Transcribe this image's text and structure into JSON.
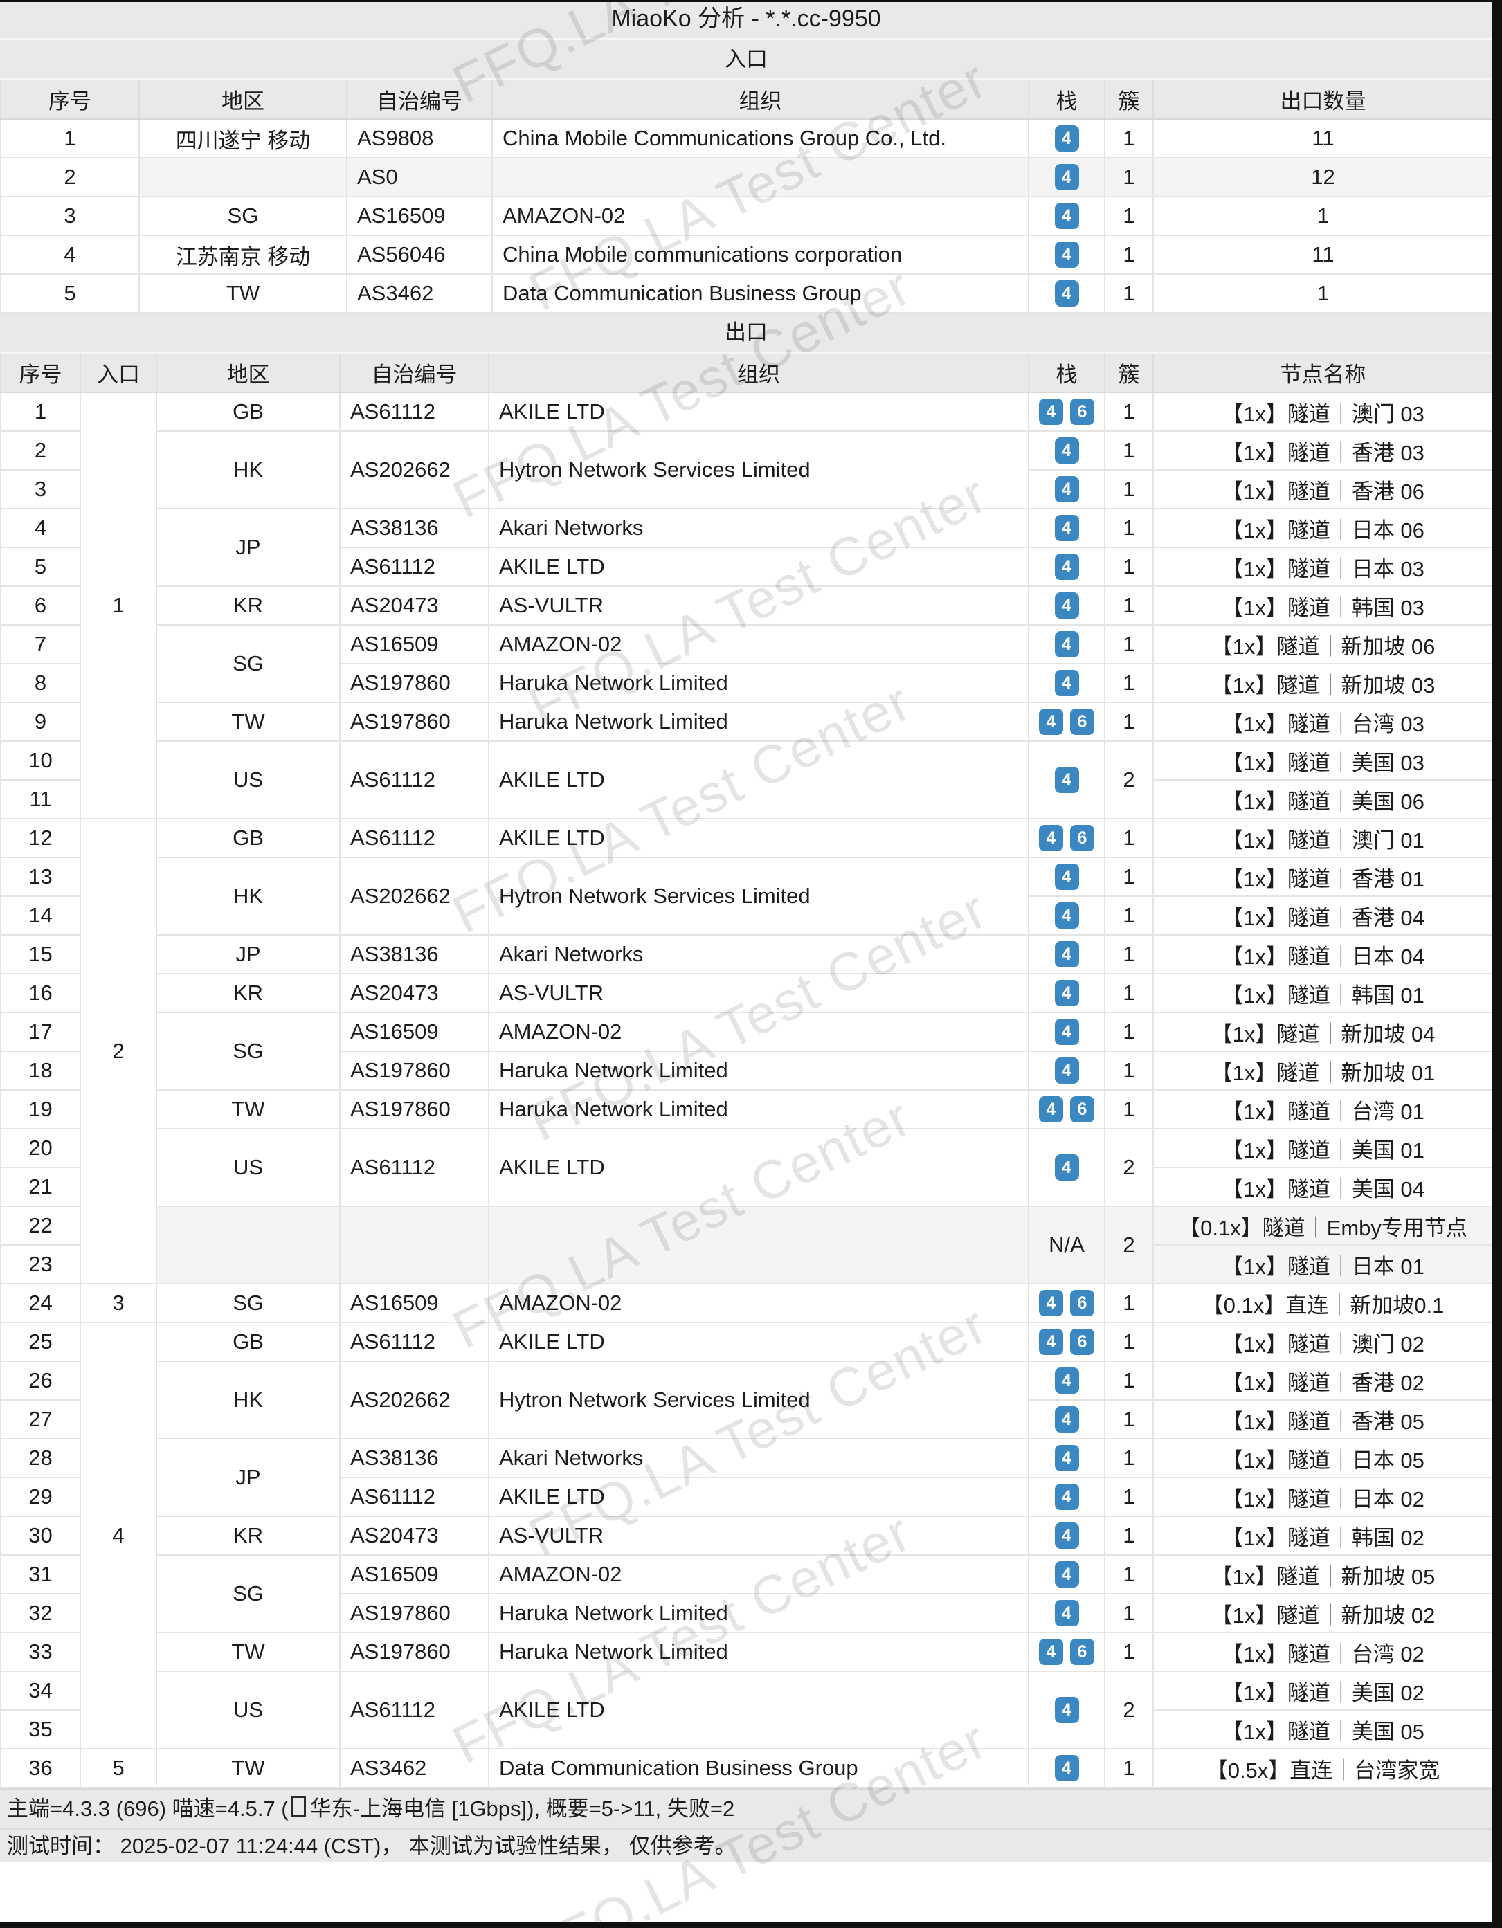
{
  "title": "MiaoKo 分析 - *.*.cc-9950",
  "watermark": {
    "text": "FFQ.LA Test Center"
  },
  "colors": {
    "badge_blue": "#3a87c1",
    "band_gray": "#e9e9e9",
    "row_shade_gray": "#f4f4f4",
    "border_gray": "#e4e4e4",
    "edge_black": "#101010"
  },
  "entry_section": {
    "heading": "入口",
    "columns": [
      "序号",
      "地区",
      "自治编号",
      "组织",
      "栈",
      "簇",
      "出口数量"
    ],
    "rows": [
      {
        "no": "1",
        "region": "四川遂宁 移动",
        "asn": "AS9808",
        "org": "China Mobile Communications Group Co., Ltd.",
        "stack": [
          [
            "4"
          ],
          1
        ],
        "cluster": "1",
        "exits": "11"
      },
      {
        "no": "2",
        "region": "",
        "asn": "AS0",
        "org": "",
        "stack": [
          [
            "4"
          ],
          1
        ],
        "cluster": "1",
        "exits": "12",
        "shaded": true
      },
      {
        "no": "3",
        "region": "SG",
        "asn": "AS16509",
        "org": "AMAZON-02",
        "stack": [
          [
            "4"
          ],
          1
        ],
        "cluster": "1",
        "exits": "1"
      },
      {
        "no": "4",
        "region": "江苏南京 移动",
        "asn": "AS56046",
        "org": "China Mobile communications corporation",
        "stack": [
          [
            "4"
          ],
          1
        ],
        "cluster": "1",
        "exits": "11"
      },
      {
        "no": "5",
        "region": "TW",
        "asn": "AS3462",
        "org": "Data Communication Business Group",
        "stack": [
          [
            "4"
          ],
          1
        ],
        "cluster": "1",
        "exits": "1"
      }
    ]
  },
  "exit_section": {
    "heading": "出口",
    "columns": [
      "序号",
      "入口",
      "地区",
      "自治编号",
      "组织",
      "栈",
      "簇",
      "节点名称"
    ],
    "rows": [
      {
        "no": "1",
        "entry": [
          "1",
          11
        ],
        "region": [
          "GB",
          1
        ],
        "asn": [
          "AS61112",
          1
        ],
        "org": [
          "AKILE LTD",
          1
        ],
        "stack": [
          [
            "4",
            "6"
          ],
          1
        ],
        "cluster": [
          "1",
          1
        ],
        "node": "【1x】隧道｜澳门 03"
      },
      {
        "no": "2",
        "region": [
          "HK",
          2
        ],
        "asn": [
          "AS202662",
          2
        ],
        "org": [
          "Hytron Network Services Limited",
          2
        ],
        "stack": [
          [
            "4"
          ],
          1
        ],
        "cluster": [
          "1",
          1
        ],
        "node": "【1x】隧道｜香港 03"
      },
      {
        "no": "3",
        "stack": [
          [
            "4"
          ],
          1
        ],
        "cluster": [
          "1",
          1
        ],
        "node": "【1x】隧道｜香港 06"
      },
      {
        "no": "4",
        "region": [
          "JP",
          2
        ],
        "asn": [
          "AS38136",
          1
        ],
        "org": [
          "Akari Networks",
          1
        ],
        "stack": [
          [
            "4"
          ],
          1
        ],
        "cluster": [
          "1",
          1
        ],
        "node": "【1x】隧道｜日本 06"
      },
      {
        "no": "5",
        "asn": [
          "AS61112",
          1
        ],
        "org": [
          "AKILE LTD",
          1
        ],
        "stack": [
          [
            "4"
          ],
          1
        ],
        "cluster": [
          "1",
          1
        ],
        "node": "【1x】隧道｜日本 03"
      },
      {
        "no": "6",
        "region": [
          "KR",
          1
        ],
        "asn": [
          "AS20473",
          1
        ],
        "org": [
          "AS-VULTR",
          1
        ],
        "stack": [
          [
            "4"
          ],
          1
        ],
        "cluster": [
          "1",
          1
        ],
        "node": "【1x】隧道｜韩国 03"
      },
      {
        "no": "7",
        "region": [
          "SG",
          2
        ],
        "asn": [
          "AS16509",
          1
        ],
        "org": [
          "AMAZON-02",
          1
        ],
        "stack": [
          [
            "4"
          ],
          1
        ],
        "cluster": [
          "1",
          1
        ],
        "node": "【1x】隧道｜新加坡 06"
      },
      {
        "no": "8",
        "asn": [
          "AS197860",
          1
        ],
        "org": [
          "Haruka Network Limited",
          1
        ],
        "stack": [
          [
            "4"
          ],
          1
        ],
        "cluster": [
          "1",
          1
        ],
        "node": "【1x】隧道｜新加坡 03"
      },
      {
        "no": "9",
        "region": [
          "TW",
          1
        ],
        "asn": [
          "AS197860",
          1
        ],
        "org": [
          "Haruka Network Limited",
          1
        ],
        "stack": [
          [
            "4",
            "6"
          ],
          1
        ],
        "cluster": [
          "1",
          1
        ],
        "node": "【1x】隧道｜台湾 03"
      },
      {
        "no": "10",
        "region": [
          "US",
          2
        ],
        "asn": [
          "AS61112",
          2
        ],
        "org": [
          "AKILE LTD",
          2
        ],
        "stack": [
          [
            "4"
          ],
          2
        ],
        "cluster": [
          "2",
          2
        ],
        "node": "【1x】隧道｜美国 03"
      },
      {
        "no": "11",
        "node": "【1x】隧道｜美国 06"
      },
      {
        "no": "12",
        "entry": [
          "2",
          12
        ],
        "region": [
          "GB",
          1
        ],
        "asn": [
          "AS61112",
          1
        ],
        "org": [
          "AKILE LTD",
          1
        ],
        "stack": [
          [
            "4",
            "6"
          ],
          1
        ],
        "cluster": [
          "1",
          1
        ],
        "node": "【1x】隧道｜澳门 01"
      },
      {
        "no": "13",
        "region": [
          "HK",
          2
        ],
        "asn": [
          "AS202662",
          2
        ],
        "org": [
          "Hytron Network Services Limited",
          2
        ],
        "stack": [
          [
            "4"
          ],
          1
        ],
        "cluster": [
          "1",
          1
        ],
        "node": "【1x】隧道｜香港 01"
      },
      {
        "no": "14",
        "stack": [
          [
            "4"
          ],
          1
        ],
        "cluster": [
          "1",
          1
        ],
        "node": "【1x】隧道｜香港 04"
      },
      {
        "no": "15",
        "region": [
          "JP",
          1
        ],
        "asn": [
          "AS38136",
          1
        ],
        "org": [
          "Akari Networks",
          1
        ],
        "stack": [
          [
            "4"
          ],
          1
        ],
        "cluster": [
          "1",
          1
        ],
        "node": "【1x】隧道｜日本 04"
      },
      {
        "no": "16",
        "region": [
          "KR",
          1
        ],
        "asn": [
          "AS20473",
          1
        ],
        "org": [
          "AS-VULTR",
          1
        ],
        "stack": [
          [
            "4"
          ],
          1
        ],
        "cluster": [
          "1",
          1
        ],
        "node": "【1x】隧道｜韩国 01"
      },
      {
        "no": "17",
        "region": [
          "SG",
          2
        ],
        "asn": [
          "AS16509",
          1
        ],
        "org": [
          "AMAZON-02",
          1
        ],
        "stack": [
          [
            "4"
          ],
          1
        ],
        "cluster": [
          "1",
          1
        ],
        "node": "【1x】隧道｜新加坡 04"
      },
      {
        "no": "18",
        "asn": [
          "AS197860",
          1
        ],
        "org": [
          "Haruka Network Limited",
          1
        ],
        "stack": [
          [
            "4"
          ],
          1
        ],
        "cluster": [
          "1",
          1
        ],
        "node": "【1x】隧道｜新加坡 01"
      },
      {
        "no": "19",
        "region": [
          "TW",
          1
        ],
        "asn": [
          "AS197860",
          1
        ],
        "org": [
          "Haruka Network Limited",
          1
        ],
        "stack": [
          [
            "4",
            "6"
          ],
          1
        ],
        "cluster": [
          "1",
          1
        ],
        "node": "【1x】隧道｜台湾 01"
      },
      {
        "no": "20",
        "region": [
          "US",
          2
        ],
        "asn": [
          "AS61112",
          2
        ],
        "org": [
          "AKILE LTD",
          2
        ],
        "stack": [
          [
            "4"
          ],
          2
        ],
        "cluster": [
          "2",
          2
        ],
        "node": "【1x】隧道｜美国 01"
      },
      {
        "no": "21",
        "node": "【1x】隧道｜美国 04"
      },
      {
        "no": "22",
        "region": [
          "",
          2
        ],
        "asn": [
          "",
          2
        ],
        "org": [
          "",
          2
        ],
        "stack": [
          "N/A",
          2
        ],
        "cluster": [
          "2",
          2
        ],
        "node": "【0.1x】隧道｜Emby专用节点",
        "shaded": true
      },
      {
        "no": "23",
        "node": "【1x】隧道｜日本 01",
        "shaded": true
      },
      {
        "no": "24",
        "entry": [
          "3",
          1
        ],
        "region": [
          "SG",
          1
        ],
        "asn": [
          "AS16509",
          1
        ],
        "org": [
          "AMAZON-02",
          1
        ],
        "stack": [
          [
            "4",
            "6"
          ],
          1
        ],
        "cluster": [
          "1",
          1
        ],
        "node": "【0.1x】直连｜新加坡0.1"
      },
      {
        "no": "25",
        "entry": [
          "4",
          11
        ],
        "region": [
          "GB",
          1
        ],
        "asn": [
          "AS61112",
          1
        ],
        "org": [
          "AKILE LTD",
          1
        ],
        "stack": [
          [
            "4",
            "6"
          ],
          1
        ],
        "cluster": [
          "1",
          1
        ],
        "node": "【1x】隧道｜澳门 02"
      },
      {
        "no": "26",
        "region": [
          "HK",
          2
        ],
        "asn": [
          "AS202662",
          2
        ],
        "org": [
          "Hytron Network Services Limited",
          2
        ],
        "stack": [
          [
            "4"
          ],
          1
        ],
        "cluster": [
          "1",
          1
        ],
        "node": "【1x】隧道｜香港 02"
      },
      {
        "no": "27",
        "stack": [
          [
            "4"
          ],
          1
        ],
        "cluster": [
          "1",
          1
        ],
        "node": "【1x】隧道｜香港 05"
      },
      {
        "no": "28",
        "region": [
          "JP",
          2
        ],
        "asn": [
          "AS38136",
          1
        ],
        "org": [
          "Akari Networks",
          1
        ],
        "stack": [
          [
            "4"
          ],
          1
        ],
        "cluster": [
          "1",
          1
        ],
        "node": "【1x】隧道｜日本 05"
      },
      {
        "no": "29",
        "asn": [
          "AS61112",
          1
        ],
        "org": [
          "AKILE LTD",
          1
        ],
        "stack": [
          [
            "4"
          ],
          1
        ],
        "cluster": [
          "1",
          1
        ],
        "node": "【1x】隧道｜日本 02"
      },
      {
        "no": "30",
        "region": [
          "KR",
          1
        ],
        "asn": [
          "AS20473",
          1
        ],
        "org": [
          "AS-VULTR",
          1
        ],
        "stack": [
          [
            "4"
          ],
          1
        ],
        "cluster": [
          "1",
          1
        ],
        "node": "【1x】隧道｜韩国 02"
      },
      {
        "no": "31",
        "region": [
          "SG",
          2
        ],
        "asn": [
          "AS16509",
          1
        ],
        "org": [
          "AMAZON-02",
          1
        ],
        "stack": [
          [
            "4"
          ],
          1
        ],
        "cluster": [
          "1",
          1
        ],
        "node": "【1x】隧道｜新加坡 05"
      },
      {
        "no": "32",
        "asn": [
          "AS197860",
          1
        ],
        "org": [
          "Haruka Network Limited",
          1
        ],
        "stack": [
          [
            "4"
          ],
          1
        ],
        "cluster": [
          "1",
          1
        ],
        "node": "【1x】隧道｜新加坡 02"
      },
      {
        "no": "33",
        "region": [
          "TW",
          1
        ],
        "asn": [
          "AS197860",
          1
        ],
        "org": [
          "Haruka Network Limited",
          1
        ],
        "stack": [
          [
            "4",
            "6"
          ],
          1
        ],
        "cluster": [
          "1",
          1
        ],
        "node": "【1x】隧道｜台湾 02"
      },
      {
        "no": "34",
        "region": [
          "US",
          2
        ],
        "asn": [
          "AS61112",
          2
        ],
        "org": [
          "AKILE LTD",
          2
        ],
        "stack": [
          [
            "4"
          ],
          2
        ],
        "cluster": [
          "2",
          2
        ],
        "node": "【1x】隧道｜美国 02"
      },
      {
        "no": "35",
        "node": "【1x】隧道｜美国 05"
      },
      {
        "no": "36",
        "entry": [
          "5",
          1
        ],
        "region": [
          "TW",
          1
        ],
        "asn": [
          "AS3462",
          1
        ],
        "org": [
          "Data Communication Business Group",
          1
        ],
        "stack": [
          [
            "4"
          ],
          1
        ],
        "cluster": [
          "1",
          1
        ],
        "node": "【0.5x】直连｜台湾家宽"
      }
    ]
  },
  "footer": {
    "line1_pre": "主端=4.3.3 (696) 喵速=4.5.7 (",
    "line1_post": "华东-上海电信 [1Gbps]), 概要=5->11, 失败=2",
    "line2": "测试时间： 2025-02-07 11:24:44 (CST)， 本测试为试验性结果， 仅供参考。"
  }
}
